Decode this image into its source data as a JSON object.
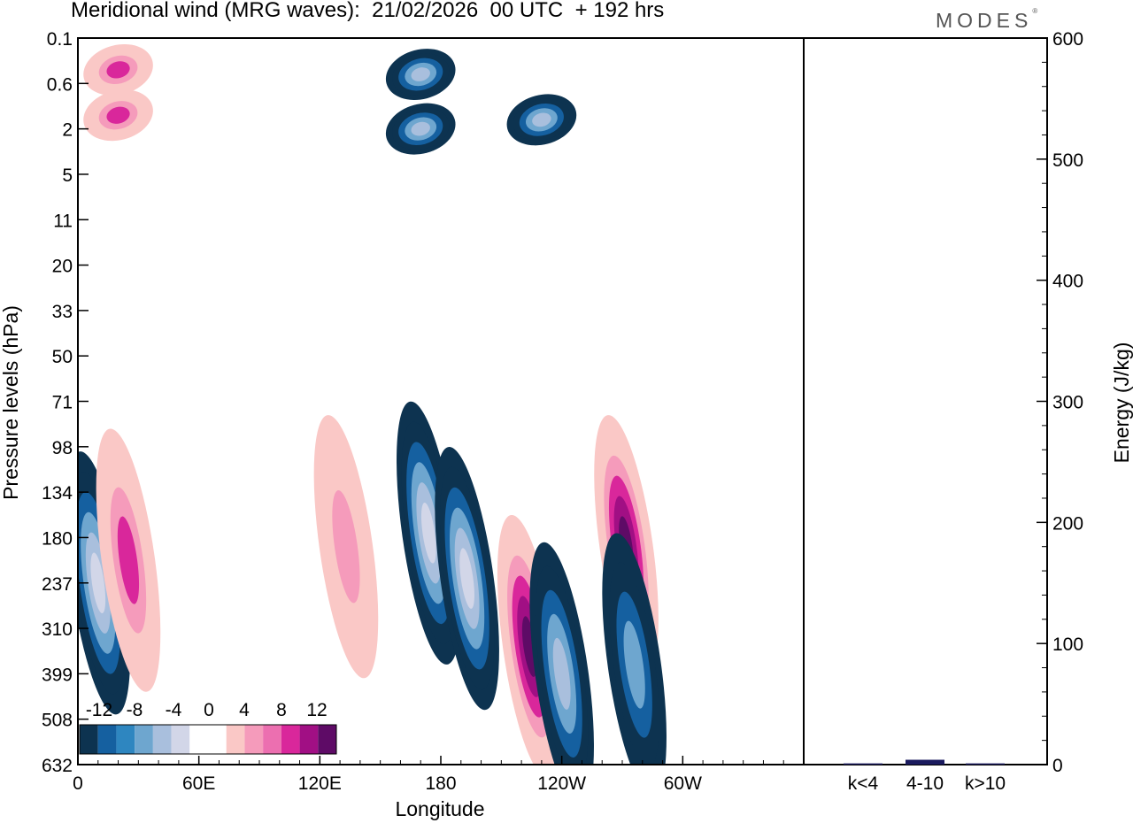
{
  "header": {
    "title": "Meridional wind (MRG waves):  21/02/2026  00 UTC  + 192 hrs",
    "brand": "MODES",
    "brand_mark": "®"
  },
  "colors": {
    "neg": [
      "#0d3350",
      "#1560a0",
      "#2e86c0",
      "#6ea6cf",
      "#a9bfdd",
      "#d2d6e8"
    ],
    "pos": [
      "#fac8c6",
      "#f59bbb",
      "#ec6fb0",
      "#d9279b",
      "#a10f84",
      "#5e0b66"
    ],
    "zero": "#ffffff"
  },
  "chart_data": [
    {
      "type": "heatmap",
      "title": "Meridional wind (MRG waves)",
      "xlabel": "Longitude",
      "ylabel": "Pressure levels (hPa)",
      "x_ticks": [
        "0",
        "60E",
        "120E",
        "180",
        "120W",
        "60W"
      ],
      "y_ticks": [
        "0.1",
        "0.6",
        "2",
        "5",
        "11",
        "20",
        "33",
        "50",
        "71",
        "98",
        "134",
        "180",
        "237",
        "310",
        "399",
        "508",
        "632"
      ],
      "colorbar_labels": [
        "-12",
        "-8",
        "-4",
        "0",
        "4",
        "8",
        "12"
      ],
      "colorbar_levels": [
        -14,
        -12,
        -10,
        -8,
        -6,
        -4,
        -2,
        2,
        4,
        6,
        8,
        10,
        12,
        14
      ],
      "features": [
        {
          "lon": 10,
          "level": 12,
          "value": -14
        },
        {
          "lon": 25,
          "level": 11.5,
          "value": 7
        },
        {
          "lon": 133,
          "level": 11.2,
          "value": 5
        },
        {
          "lon": 174,
          "level": 10.9,
          "value": -12
        },
        {
          "lon": 193,
          "level": 11.9,
          "value": -12
        },
        {
          "lon": 224,
          "level": 13.4,
          "value": 13
        },
        {
          "lon": 240,
          "level": 14,
          "value": -10
        },
        {
          "lon": 272,
          "level": 11.2,
          "value": 14
        },
        {
          "lon": 276,
          "level": 13.8,
          "value": -8
        },
        {
          "lon": 170,
          "level": 0.8,
          "value": -11
        },
        {
          "lon": 170,
          "level": 2,
          "value": -11
        },
        {
          "lon": 230,
          "level": 1.8,
          "value": -10
        },
        {
          "lon": 20,
          "level": 0.7,
          "value": 9
        },
        {
          "lon": 20,
          "level": 1.7,
          "value": 9
        }
      ]
    },
    {
      "type": "bar",
      "ylabel": "Energy (J/kg)",
      "categories": [
        "k<4",
        "4-10",
        "k>10"
      ],
      "values": [
        1,
        4,
        1
      ],
      "ylim": [
        0,
        600
      ],
      "y_ticks": [
        "0",
        "100",
        "200",
        "300",
        "400",
        "500",
        "600"
      ]
    }
  ]
}
